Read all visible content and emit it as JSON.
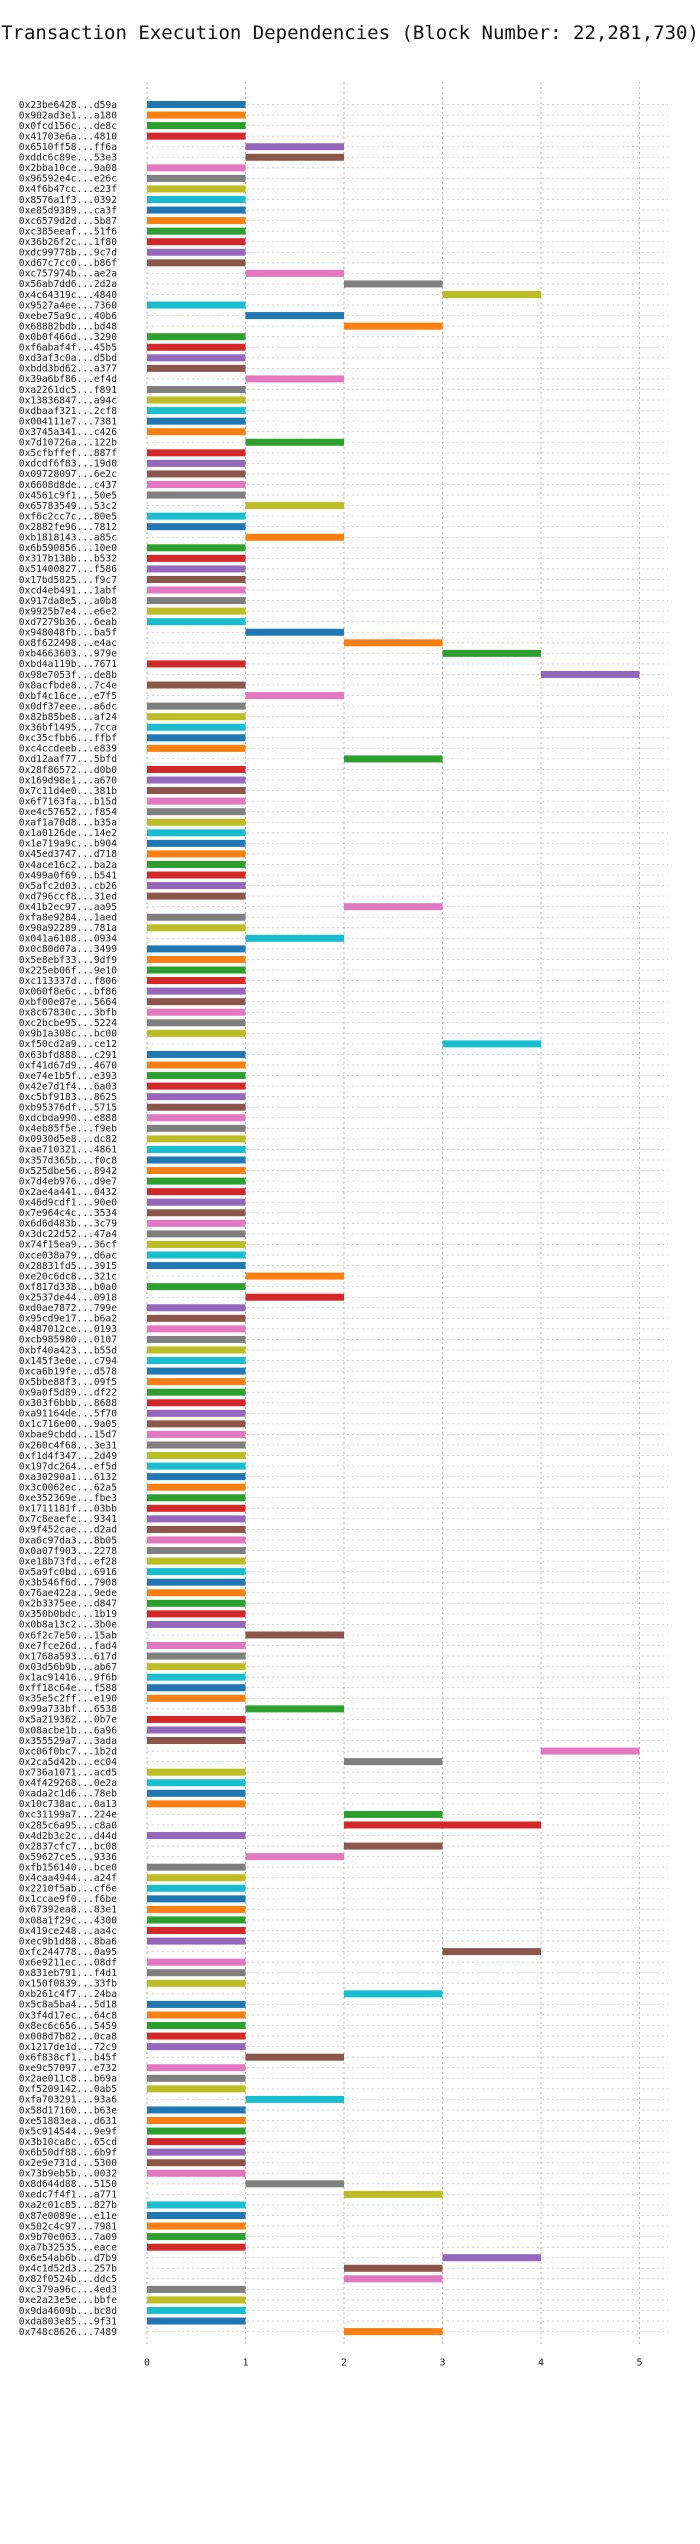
{
  "chart_data": {
    "type": "bar",
    "orientation": "horizontal-gantt",
    "title": "Transaction Execution Dependencies (Block Number: 22,281,730)",
    "xlabel": "",
    "ylabel": "",
    "xlim": [
      0,
      5.3
    ],
    "x_ticks": [
      "0",
      "1",
      "2",
      "3",
      "4",
      "5"
    ],
    "grid": true,
    "colors": [
      "#1f77b4",
      "#ff7f0e",
      "#2ca02c",
      "#d62728",
      "#9467bd",
      "#8c564b",
      "#e377c2",
      "#7f7f7f",
      "#bcbd22",
      "#17becf"
    ],
    "transactions": [
      {
        "hash": "0x23be6428...d59a",
        "start": 0,
        "end": 1
      },
      {
        "hash": "0x902ad3e1...a180",
        "start": 0,
        "end": 1
      },
      {
        "hash": "0x0fcd156c...de8c",
        "start": 0,
        "end": 1
      },
      {
        "hash": "0x41703e6a...4810",
        "start": 0,
        "end": 1
      },
      {
        "hash": "0x6510ff58...ff6a",
        "start": 1,
        "end": 2
      },
      {
        "hash": "0xddc6c89e...53e3",
        "start": 1,
        "end": 2
      },
      {
        "hash": "0x2bba10ce...9a08",
        "start": 0,
        "end": 1
      },
      {
        "hash": "0x96592e4c...e26c",
        "start": 0,
        "end": 1
      },
      {
        "hash": "0x4f6b47cc...e23f",
        "start": 0,
        "end": 1
      },
      {
        "hash": "0x8576a1f3...0392",
        "start": 0,
        "end": 1
      },
      {
        "hash": "0xe85d9389...ca3f",
        "start": 0,
        "end": 1
      },
      {
        "hash": "0xc6579d2d...5b87",
        "start": 0,
        "end": 1
      },
      {
        "hash": "0xc385eeaf...51f6",
        "start": 0,
        "end": 1
      },
      {
        "hash": "0x36b26f2c...1f80",
        "start": 0,
        "end": 1
      },
      {
        "hash": "0xdc99778b...9c7d",
        "start": 0,
        "end": 1
      },
      {
        "hash": "0xd67c7cc0...b86f",
        "start": 0,
        "end": 1
      },
      {
        "hash": "0xc757974b...ae2a",
        "start": 1,
        "end": 2
      },
      {
        "hash": "0x56ab7dd6...2d2a",
        "start": 2,
        "end": 3
      },
      {
        "hash": "0x4c64319c...4840",
        "start": 3,
        "end": 4
      },
      {
        "hash": "0x9527a4ee...7360",
        "start": 0,
        "end": 1
      },
      {
        "hash": "0xebe75a9c...40b6",
        "start": 1,
        "end": 2
      },
      {
        "hash": "0x68882bdb...bd48",
        "start": 2,
        "end": 3
      },
      {
        "hash": "0x0b0f466d...3290",
        "start": 0,
        "end": 1
      },
      {
        "hash": "0xf6abaf4f...45b5",
        "start": 0,
        "end": 1
      },
      {
        "hash": "0xd3af3c0a...d5bd",
        "start": 0,
        "end": 1
      },
      {
        "hash": "0xbdd3bd62...a377",
        "start": 0,
        "end": 1
      },
      {
        "hash": "0x39a6bf86...ef4d",
        "start": 1,
        "end": 2
      },
      {
        "hash": "0xa2261dc5...f891",
        "start": 0,
        "end": 1
      },
      {
        "hash": "0x13836847...a94c",
        "start": 0,
        "end": 1
      },
      {
        "hash": "0xdbaaf321...2cf8",
        "start": 0,
        "end": 1
      },
      {
        "hash": "0x004111e7...7381",
        "start": 0,
        "end": 1
      },
      {
        "hash": "0x3745a341...c426",
        "start": 0,
        "end": 1
      },
      {
        "hash": "0x7d10726a...122b",
        "start": 1,
        "end": 2
      },
      {
        "hash": "0x5cfbffef...887f",
        "start": 0,
        "end": 1
      },
      {
        "hash": "0xdcdf6f83...19d0",
        "start": 0,
        "end": 1
      },
      {
        "hash": "0x09728097...6e2c",
        "start": 0,
        "end": 1
      },
      {
        "hash": "0x6608d8de...c437",
        "start": 0,
        "end": 1
      },
      {
        "hash": "0x4561c9f1...50e5",
        "start": 0,
        "end": 1
      },
      {
        "hash": "0x65783549...53c2",
        "start": 1,
        "end": 2
      },
      {
        "hash": "0xf6c2cc7c...80e5",
        "start": 0,
        "end": 1
      },
      {
        "hash": "0x2882fe96...7812",
        "start": 0,
        "end": 1
      },
      {
        "hash": "0xb1818143...a85c",
        "start": 1,
        "end": 2
      },
      {
        "hash": "0x6b590856...10e0",
        "start": 0,
        "end": 1
      },
      {
        "hash": "0x317b130b...b532",
        "start": 0,
        "end": 1
      },
      {
        "hash": "0x51400827...f586",
        "start": 0,
        "end": 1
      },
      {
        "hash": "0x17bd5825...f9c7",
        "start": 0,
        "end": 1
      },
      {
        "hash": "0xcd4eb491...1abf",
        "start": 0,
        "end": 1
      },
      {
        "hash": "0x917da8e5...a0b8",
        "start": 0,
        "end": 1
      },
      {
        "hash": "0x9925b7e4...e6e2",
        "start": 0,
        "end": 1
      },
      {
        "hash": "0xd7279b36...6eab",
        "start": 0,
        "end": 1
      },
      {
        "hash": "0x948048fb...ba5f",
        "start": 1,
        "end": 2
      },
      {
        "hash": "0x8f622498...e4ac",
        "start": 2,
        "end": 3
      },
      {
        "hash": "0xb4663603...979e",
        "start": 3,
        "end": 4
      },
      {
        "hash": "0xbd4a119b...7671",
        "start": 0,
        "end": 1
      },
      {
        "hash": "0x98e7053f...de8b",
        "start": 4,
        "end": 5
      },
      {
        "hash": "0x8acfbde8...7c4e",
        "start": 0,
        "end": 1
      },
      {
        "hash": "0xbf4c16ce...e7f5",
        "start": 1,
        "end": 2
      },
      {
        "hash": "0x0df37eee...a6dc",
        "start": 0,
        "end": 1
      },
      {
        "hash": "0x82b85be8...af24",
        "start": 0,
        "end": 1
      },
      {
        "hash": "0x36bf1495...7cca",
        "start": 0,
        "end": 1
      },
      {
        "hash": "0xc35cfbb6...ffbf",
        "start": 0,
        "end": 1
      },
      {
        "hash": "0xc4ccdeeb...e839",
        "start": 0,
        "end": 1
      },
      {
        "hash": "0xd12aaf77...5bfd",
        "start": 2,
        "end": 3
      },
      {
        "hash": "0x28f86572...d0b0",
        "start": 0,
        "end": 1
      },
      {
        "hash": "0x169d98e1...a670",
        "start": 0,
        "end": 1
      },
      {
        "hash": "0x7c11d4e0...381b",
        "start": 0,
        "end": 1
      },
      {
        "hash": "0x6f7163fa...b15d",
        "start": 0,
        "end": 1
      },
      {
        "hash": "0xe4c57652...f854",
        "start": 0,
        "end": 1
      },
      {
        "hash": "0xaf1a70d8...b35a",
        "start": 0,
        "end": 1
      },
      {
        "hash": "0x1a0126de...14e2",
        "start": 0,
        "end": 1
      },
      {
        "hash": "0x1e719a9c...b904",
        "start": 0,
        "end": 1
      },
      {
        "hash": "0x45ed3747...d718",
        "start": 0,
        "end": 1
      },
      {
        "hash": "0x4ace16c2...ba2a",
        "start": 0,
        "end": 1
      },
      {
        "hash": "0x499a0f69...b541",
        "start": 0,
        "end": 1
      },
      {
        "hash": "0x5afc2d03...cb26",
        "start": 0,
        "end": 1
      },
      {
        "hash": "0xd796ccf8...31ed",
        "start": 0,
        "end": 1
      },
      {
        "hash": "0x41b2ec97...aa95",
        "start": 2,
        "end": 3
      },
      {
        "hash": "0xfa8e9284...1aed",
        "start": 0,
        "end": 1
      },
      {
        "hash": "0x90a92289...781a",
        "start": 0,
        "end": 1
      },
      {
        "hash": "0x041a6108...0934",
        "start": 1,
        "end": 2
      },
      {
        "hash": "0x0c80d07a...3499",
        "start": 0,
        "end": 1
      },
      {
        "hash": "0x5e8ebf33...9df9",
        "start": 0,
        "end": 1
      },
      {
        "hash": "0x225eb06f...9e10",
        "start": 0,
        "end": 1
      },
      {
        "hash": "0xc113337d...f806",
        "start": 0,
        "end": 1
      },
      {
        "hash": "0x060f8e6c...bf86",
        "start": 0,
        "end": 1
      },
      {
        "hash": "0xbf00e87e...5664",
        "start": 0,
        "end": 1
      },
      {
        "hash": "0x8c67830c...3bfb",
        "start": 0,
        "end": 1
      },
      {
        "hash": "0xc2bcbe95...5224",
        "start": 0,
        "end": 1
      },
      {
        "hash": "0x9b1a308c...bc00",
        "start": 0,
        "end": 1
      },
      {
        "hash": "0xf50cd2a9...ce12",
        "start": 3,
        "end": 4
      },
      {
        "hash": "0x63bfd888...c291",
        "start": 0,
        "end": 1
      },
      {
        "hash": "0xf41d67d9...4670",
        "start": 0,
        "end": 1
      },
      {
        "hash": "0xe74e1b5f...e393",
        "start": 0,
        "end": 1
      },
      {
        "hash": "0x42e7d1f4...6a03",
        "start": 0,
        "end": 1
      },
      {
        "hash": "0xc5bf9183...8625",
        "start": 0,
        "end": 1
      },
      {
        "hash": "0xb95376df...5715",
        "start": 0,
        "end": 1
      },
      {
        "hash": "0xdcbda990...e888",
        "start": 0,
        "end": 1
      },
      {
        "hash": "0x4eb85f5e...f9eb",
        "start": 0,
        "end": 1
      },
      {
        "hash": "0x0930d5e8...dc82",
        "start": 0,
        "end": 1
      },
      {
        "hash": "0xae710321...4861",
        "start": 0,
        "end": 1
      },
      {
        "hash": "0x357d365b...f0c8",
        "start": 0,
        "end": 1
      },
      {
        "hash": "0x525dbe56...8942",
        "start": 0,
        "end": 1
      },
      {
        "hash": "0x7d4eb976...d9e7",
        "start": 0,
        "end": 1
      },
      {
        "hash": "0x2ae4a441...0432",
        "start": 0,
        "end": 1
      },
      {
        "hash": "0x46d9cdf1...90e0",
        "start": 0,
        "end": 1
      },
      {
        "hash": "0x7e964c4c...3534",
        "start": 0,
        "end": 1
      },
      {
        "hash": "0x6d6d483b...3c79",
        "start": 0,
        "end": 1
      },
      {
        "hash": "0x3dc22d52...47a4",
        "start": 0,
        "end": 1
      },
      {
        "hash": "0x74f15ea9...36cf",
        "start": 0,
        "end": 1
      },
      {
        "hash": "0xce038a79...d6ac",
        "start": 0,
        "end": 1
      },
      {
        "hash": "0x28831fd5...3915",
        "start": 0,
        "end": 1
      },
      {
        "hash": "0xe20c6dc8...321c",
        "start": 1,
        "end": 2
      },
      {
        "hash": "0xf817d338...b0a0",
        "start": 0,
        "end": 1
      },
      {
        "hash": "0x2537de44...0918",
        "start": 1,
        "end": 2
      },
      {
        "hash": "0xd0ae7872...799e",
        "start": 0,
        "end": 1
      },
      {
        "hash": "0x95cd9e17...b6a2",
        "start": 0,
        "end": 1
      },
      {
        "hash": "0x487012ce...0193",
        "start": 0,
        "end": 1
      },
      {
        "hash": "0xcb985980...0107",
        "start": 0,
        "end": 1
      },
      {
        "hash": "0xbf40a423...b55d",
        "start": 0,
        "end": 1
      },
      {
        "hash": "0x145f3e0e...c794",
        "start": 0,
        "end": 1
      },
      {
        "hash": "0xca6b19fe...d578",
        "start": 0,
        "end": 1
      },
      {
        "hash": "0x5bbe88f3...09f5",
        "start": 0,
        "end": 1
      },
      {
        "hash": "0x9a0f5d89...df22",
        "start": 0,
        "end": 1
      },
      {
        "hash": "0x303f6bbb...8688",
        "start": 0,
        "end": 1
      },
      {
        "hash": "0xa91164de...5f70",
        "start": 0,
        "end": 1
      },
      {
        "hash": "0x1c716e00...9a05",
        "start": 0,
        "end": 1
      },
      {
        "hash": "0xbae9cbdd...15d7",
        "start": 0,
        "end": 1
      },
      {
        "hash": "0x260c4f68...3e31",
        "start": 0,
        "end": 1
      },
      {
        "hash": "0xf1d4f347...2d49",
        "start": 0,
        "end": 1
      },
      {
        "hash": "0x197dc264...ef5d",
        "start": 0,
        "end": 1
      },
      {
        "hash": "0xa30290a1...6132",
        "start": 0,
        "end": 1
      },
      {
        "hash": "0x3c0062ec...62a5",
        "start": 0,
        "end": 1
      },
      {
        "hash": "0xe352369e...fbe3",
        "start": 0,
        "end": 1
      },
      {
        "hash": "0x1711181f...03bb",
        "start": 0,
        "end": 1
      },
      {
        "hash": "0x7c8eaefe...9341",
        "start": 0,
        "end": 1
      },
      {
        "hash": "0x9f452cae...d2ad",
        "start": 0,
        "end": 1
      },
      {
        "hash": "0xa6c97da3...8b05",
        "start": 0,
        "end": 1
      },
      {
        "hash": "0x0a07f903...2278",
        "start": 0,
        "end": 1
      },
      {
        "hash": "0xe18b73fd...ef28",
        "start": 0,
        "end": 1
      },
      {
        "hash": "0x5a9fc0bd...6916",
        "start": 0,
        "end": 1
      },
      {
        "hash": "0x3b546f6d...7908",
        "start": 0,
        "end": 1
      },
      {
        "hash": "0x76ae422a...9ede",
        "start": 0,
        "end": 1
      },
      {
        "hash": "0x2b3375ee...d847",
        "start": 0,
        "end": 1
      },
      {
        "hash": "0x350b0bdc...1b19",
        "start": 0,
        "end": 1
      },
      {
        "hash": "0x0b8a13c2...3b0e",
        "start": 0,
        "end": 1
      },
      {
        "hash": "0x6f2c7e50...15ab",
        "start": 1,
        "end": 2
      },
      {
        "hash": "0xe7fce26d...fad4",
        "start": 0,
        "end": 1
      },
      {
        "hash": "0x1768a593...617d",
        "start": 0,
        "end": 1
      },
      {
        "hash": "0x03d56b9b...ab67",
        "start": 0,
        "end": 1
      },
      {
        "hash": "0x1ac91416...9f6b",
        "start": 0,
        "end": 1
      },
      {
        "hash": "0xff18c64e...f588",
        "start": 0,
        "end": 1
      },
      {
        "hash": "0x35e5c2ff...e190",
        "start": 0,
        "end": 1
      },
      {
        "hash": "0x99a733bf...6538",
        "start": 1,
        "end": 2
      },
      {
        "hash": "0x5a219362...0b7e",
        "start": 0,
        "end": 1
      },
      {
        "hash": "0x08acbe1b...6a96",
        "start": 0,
        "end": 1
      },
      {
        "hash": "0x355529a7...3ada",
        "start": 0,
        "end": 1
      },
      {
        "hash": "0xc06f0bc7...1b2d",
        "start": 4,
        "end": 5
      },
      {
        "hash": "0x2ca5d42b...ec04",
        "start": 2,
        "end": 3
      },
      {
        "hash": "0x736a1071...acd5",
        "start": 0,
        "end": 1
      },
      {
        "hash": "0x4f429268...0e2a",
        "start": 0,
        "end": 1
      },
      {
        "hash": "0xada2c1d6...78eb",
        "start": 0,
        "end": 1
      },
      {
        "hash": "0x10c738ac...0a13",
        "start": 0,
        "end": 1
      },
      {
        "hash": "0xc31199a7...224e",
        "start": 2,
        "end": 3
      },
      {
        "hash": "0x285c6a95...c8a0",
        "start": 2,
        "end": 4
      },
      {
        "hash": "0x4d2b3c2c...d44d",
        "start": 0,
        "end": 1
      },
      {
        "hash": "0x2837cfc7...bc08",
        "start": 2,
        "end": 3
      },
      {
        "hash": "0x59627ce5...9336",
        "start": 1,
        "end": 2
      },
      {
        "hash": "0xfb156140...bce0",
        "start": 0,
        "end": 1
      },
      {
        "hash": "0x4caa4944...a24f",
        "start": 0,
        "end": 1
      },
      {
        "hash": "0x2210f5ab...cf6e",
        "start": 0,
        "end": 1
      },
      {
        "hash": "0x1ccae9f0...f6be",
        "start": 0,
        "end": 1
      },
      {
        "hash": "0x67392ea8...83e1",
        "start": 0,
        "end": 1
      },
      {
        "hash": "0x08a1f29c...4300",
        "start": 0,
        "end": 1
      },
      {
        "hash": "0x419ce248...aa4c",
        "start": 0,
        "end": 1
      },
      {
        "hash": "0xec9b1d88...8ba6",
        "start": 0,
        "end": 1
      },
      {
        "hash": "0xfc244778...0a95",
        "start": 3,
        "end": 4
      },
      {
        "hash": "0x6e9211ec...08df",
        "start": 0,
        "end": 1
      },
      {
        "hash": "0x831eb791...f4d1",
        "start": 0,
        "end": 1
      },
      {
        "hash": "0x150f0839...33fb",
        "start": 0,
        "end": 1
      },
      {
        "hash": "0xb261c4f7...24ba",
        "start": 2,
        "end": 3
      },
      {
        "hash": "0x5c8a5ba4...5d18",
        "start": 0,
        "end": 1
      },
      {
        "hash": "0x3f4d17ec...64c8",
        "start": 0,
        "end": 1
      },
      {
        "hash": "0x8ec6c656...5459",
        "start": 0,
        "end": 1
      },
      {
        "hash": "0x008d7b82...0ca8",
        "start": 0,
        "end": 1
      },
      {
        "hash": "0x1217de1d...72c9",
        "start": 0,
        "end": 1
      },
      {
        "hash": "0x6f838cf1...b45f",
        "start": 1,
        "end": 2
      },
      {
        "hash": "0xe9c57097...e732",
        "start": 0,
        "end": 1
      },
      {
        "hash": "0x2ae011c8...b69a",
        "start": 0,
        "end": 1
      },
      {
        "hash": "0xf5209142...0ab5",
        "start": 0,
        "end": 1
      },
      {
        "hash": "0xfa703291...93a6",
        "start": 1,
        "end": 2
      },
      {
        "hash": "0x58d17160...b63e",
        "start": 0,
        "end": 1
      },
      {
        "hash": "0xe51883ea...d631",
        "start": 0,
        "end": 1
      },
      {
        "hash": "0x5c914544...9e9f",
        "start": 0,
        "end": 1
      },
      {
        "hash": "0x3b10ca8c...65cd",
        "start": 0,
        "end": 1
      },
      {
        "hash": "0x6b50df88...6b9f",
        "start": 0,
        "end": 1
      },
      {
        "hash": "0x2e9e731d...5300",
        "start": 0,
        "end": 1
      },
      {
        "hash": "0x73b9eb5b...0032",
        "start": 0,
        "end": 1
      },
      {
        "hash": "0x8d644d88...5150",
        "start": 1,
        "end": 2
      },
      {
        "hash": "0xedc7f4f1...a771",
        "start": 2,
        "end": 3
      },
      {
        "hash": "0xa2c01c85...827b",
        "start": 0,
        "end": 1
      },
      {
        "hash": "0x87e0089e...e11e",
        "start": 0,
        "end": 1
      },
      {
        "hash": "0x502c4c97...7981",
        "start": 0,
        "end": 1
      },
      {
        "hash": "0x9b70e063...7a09",
        "start": 0,
        "end": 1
      },
      {
        "hash": "0xa7b32535...eace",
        "start": 0,
        "end": 1
      },
      {
        "hash": "0x6e54ab6b...d7b9",
        "start": 3,
        "end": 4
      },
      {
        "hash": "0x4c1d52d3...257b",
        "start": 2,
        "end": 3
      },
      {
        "hash": "0x82f0524b...ddc5",
        "start": 2,
        "end": 3
      },
      {
        "hash": "0xc379a96c...4ed3",
        "start": 0,
        "end": 1
      },
      {
        "hash": "0xe2a23e5e...bbfe",
        "start": 0,
        "end": 1
      },
      {
        "hash": "0x9da4609b...bc8d",
        "start": 0,
        "end": 1
      },
      {
        "hash": "0xda803e85...9f31",
        "start": 0,
        "end": 1
      },
      {
        "hash": "0x748c8626...7489",
        "start": 2,
        "end": 3
      }
    ]
  }
}
